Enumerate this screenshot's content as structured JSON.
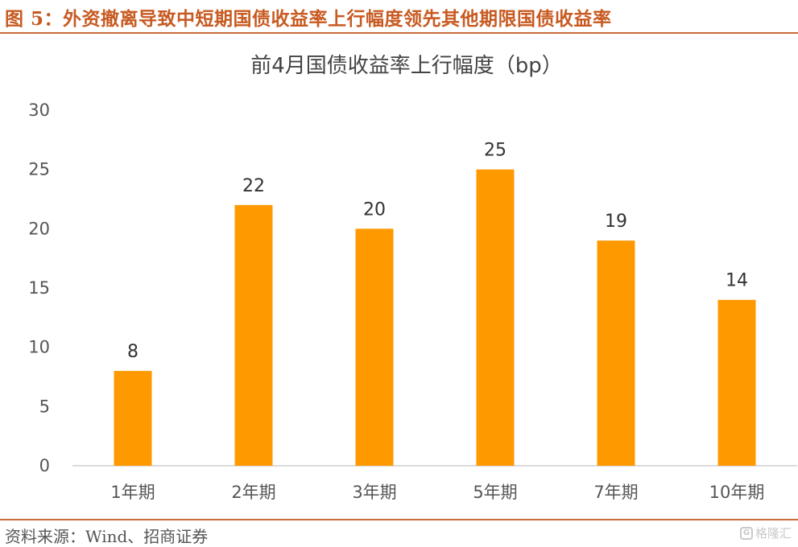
{
  "figure": {
    "title": "图 5：外资撤离导致中短期国债收益率上行幅度领先其他期限国债收益率",
    "source": "资料来源：Wind、招商证券",
    "watermark": "格隆汇"
  },
  "colors": {
    "accent": "#c85a21",
    "bar": "#ff9900"
  },
  "chart_data": {
    "type": "bar",
    "title": "前4月国债收益率上行幅度（bp）",
    "categories": [
      "1年期",
      "2年期",
      "3年期",
      "5年期",
      "7年期",
      "10年期"
    ],
    "values": [
      8,
      22,
      20,
      25,
      19,
      14
    ],
    "data_labels": [
      "8",
      "22",
      "20",
      "25",
      "19",
      "14"
    ],
    "yticks": [
      "0",
      "5",
      "10",
      "15",
      "20",
      "25",
      "30"
    ],
    "ylim": [
      0,
      30
    ],
    "xlabel": "",
    "ylabel": "",
    "grid": false,
    "legend": "none"
  }
}
